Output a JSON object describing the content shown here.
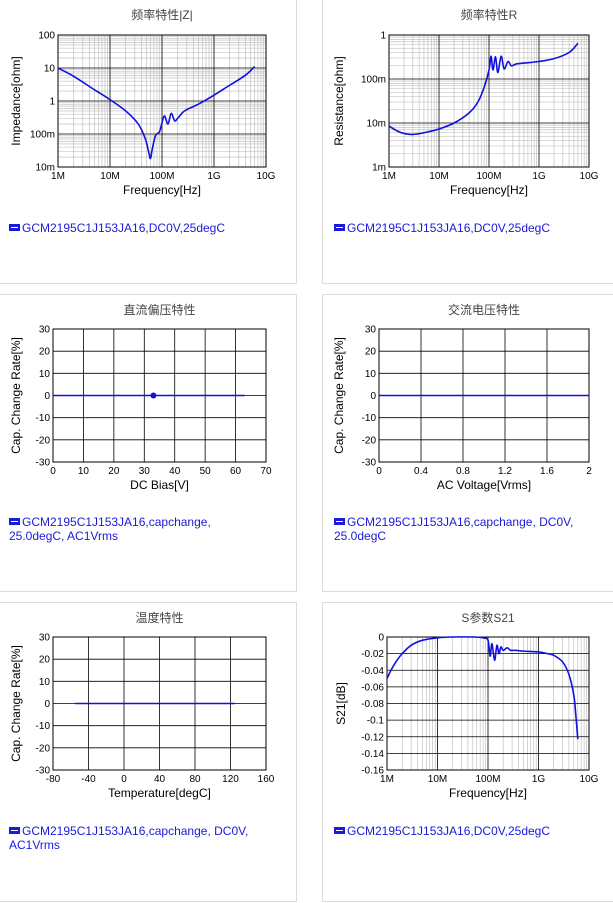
{
  "colors": {
    "curve": "#1010e0",
    "grid_major": "#000000",
    "grid_minor": "#b8b8b8",
    "legend": "#1a1adb"
  },
  "chart_data": [
    {
      "id": "c1",
      "type": "line",
      "title": "频率特性|Z|",
      "xlabel": "Frequency[Hz]",
      "ylabel": "Impedance[ohm]",
      "xscale": "log",
      "yscale": "log",
      "xlim": [
        1000000,
        10000000000
      ],
      "ylim": [
        0.01,
        100
      ],
      "xticks": [
        1000000,
        10000000,
        100000000,
        1000000000,
        10000000000
      ],
      "xtick_labels": [
        "1M",
        "10M",
        "100M",
        "1G",
        "10G"
      ],
      "yticks": [
        0.01,
        0.1,
        1,
        10,
        100
      ],
      "ytick_labels": [
        "10m",
        "100m",
        "1",
        "10",
        "100"
      ],
      "grid": true,
      "minor_grid": true,
      "series": [
        {
          "x": [
            1000000,
            2000000,
            5000000,
            10000000,
            20000000,
            35000000,
            48000000,
            55000000,
            60000000,
            65000000,
            75000000,
            90000000,
            110000000,
            130000000,
            150000000,
            175000000,
            200000000,
            250000000,
            300000000,
            500000000,
            1000000000,
            2000000000,
            4000000000,
            6000000000
          ],
          "y": [
            10,
            5.6,
            2.2,
            1.1,
            0.5,
            0.2,
            0.07,
            0.03,
            0.018,
            0.035,
            0.09,
            0.12,
            0.35,
            0.2,
            0.42,
            0.25,
            0.3,
            0.45,
            0.55,
            0.8,
            1.5,
            3,
            6,
            11
          ]
        }
      ],
      "legend": "GCM2195C1J153JA16,DC0V,25degC"
    },
    {
      "id": "c2",
      "type": "line",
      "title": "频率特性R",
      "xlabel": "Frequency[Hz]",
      "ylabel": "Resistance[ohm]",
      "xscale": "log",
      "yscale": "log",
      "xlim": [
        1000000,
        10000000000
      ],
      "ylim": [
        0.001,
        1
      ],
      "xticks": [
        1000000,
        10000000,
        100000000,
        1000000000,
        10000000000
      ],
      "xtick_labels": [
        "1M",
        "10M",
        "100M",
        "1G",
        "10G"
      ],
      "yticks": [
        0.001,
        0.01,
        0.1,
        1
      ],
      "ytick_labels": [
        "1m",
        "10m",
        "100m",
        "1"
      ],
      "grid": true,
      "minor_grid": true,
      "series": [
        {
          "x": [
            1000000,
            1500000,
            2000000,
            3000000,
            5000000,
            10000000,
            20000000,
            40000000,
            60000000,
            80000000,
            100000000,
            110000000,
            120000000,
            135000000,
            150000000,
            175000000,
            200000000,
            240000000,
            280000000,
            350000000,
            500000000,
            1000000000,
            2000000000,
            4000000000,
            6000000000
          ],
          "y": [
            0.0085,
            0.0065,
            0.0058,
            0.0055,
            0.006,
            0.0073,
            0.01,
            0.017,
            0.03,
            0.065,
            0.16,
            0.33,
            0.16,
            0.32,
            0.14,
            0.33,
            0.17,
            0.25,
            0.2,
            0.22,
            0.23,
            0.25,
            0.29,
            0.4,
            0.65
          ]
        }
      ],
      "legend": "GCM2195C1J153JA16,DC0V,25degC"
    },
    {
      "id": "c3",
      "type": "line",
      "title": "直流偏压特性",
      "xlabel": "DC Bias[V]",
      "ylabel": "Cap. Change Rate[%]",
      "xscale": "linear",
      "yscale": "linear",
      "xlim": [
        0,
        70
      ],
      "ylim": [
        -30,
        30
      ],
      "xticks": [
        0,
        10,
        20,
        30,
        40,
        50,
        60,
        70
      ],
      "xtick_labels": [
        "0",
        "10",
        "20",
        "30",
        "40",
        "50",
        "60",
        "70"
      ],
      "yticks": [
        -30,
        -20,
        -10,
        0,
        10,
        20,
        30
      ],
      "ytick_labels": [
        "-30",
        "-20",
        "-10",
        "0",
        "10",
        "20",
        "30"
      ],
      "grid": true,
      "minor_grid": false,
      "series": [
        {
          "x": [
            0,
            63
          ],
          "y": [
            0,
            0
          ]
        }
      ],
      "markers": [
        {
          "x": 33,
          "y": 0
        }
      ],
      "legend": "GCM2195C1J153JA16,capchange, 25.0degC, AC1Vrms"
    },
    {
      "id": "c4",
      "type": "line",
      "title": "交流电压特性",
      "xlabel": "AC Voltage[Vrms]",
      "ylabel": "Cap. Change Rate[%]",
      "xscale": "linear",
      "yscale": "linear",
      "xlim": [
        0,
        2
      ],
      "ylim": [
        -30,
        30
      ],
      "xticks": [
        0,
        0.4,
        0.8,
        1.2,
        1.6,
        2
      ],
      "xtick_labels": [
        "0",
        "0.4",
        "0.8",
        "1.2",
        "1.6",
        "2"
      ],
      "yticks": [
        -30,
        -20,
        -10,
        0,
        10,
        20,
        30
      ],
      "ytick_labels": [
        "-30",
        "-20",
        "-10",
        "0",
        "10",
        "20",
        "30"
      ],
      "grid": true,
      "minor_grid": false,
      "series": [
        {
          "x": [
            0,
            2
          ],
          "y": [
            0,
            0
          ]
        }
      ],
      "legend": "GCM2195C1J153JA16,capchange, DC0V, 25.0degC"
    },
    {
      "id": "c5",
      "type": "line",
      "title": "温度特性",
      "xlabel": "Temperature[degC]",
      "ylabel": "Cap. Change Rate[%]",
      "xscale": "linear",
      "yscale": "linear",
      "xlim": [
        -80,
        160
      ],
      "ylim": [
        -30,
        30
      ],
      "xticks": [
        -80,
        -40,
        0,
        40,
        80,
        120,
        160
      ],
      "xtick_labels": [
        "-80",
        "-40",
        "0",
        "40",
        "80",
        "120",
        "160"
      ],
      "yticks": [
        -30,
        -20,
        -10,
        0,
        10,
        20,
        30
      ],
      "ytick_labels": [
        "-30",
        "-20",
        "-10",
        "0",
        "10",
        "20",
        "30"
      ],
      "grid": true,
      "minor_grid": false,
      "series": [
        {
          "x": [
            -55,
            125
          ],
          "y": [
            0,
            0
          ]
        }
      ],
      "legend": "GCM2195C1J153JA16,capchange, DC0V, AC1Vrms"
    },
    {
      "id": "c6",
      "type": "line",
      "title": "S参数S21",
      "xlabel": "Frequency[Hz]",
      "ylabel": "S21[dB]",
      "xscale": "log",
      "yscale": "linear",
      "xlim": [
        1000000,
        10000000000
      ],
      "ylim": [
        -0.16,
        0
      ],
      "xticks": [
        1000000,
        10000000,
        100000000,
        1000000000,
        10000000000
      ],
      "xtick_labels": [
        "1M",
        "10M",
        "100M",
        "1G",
        "10G"
      ],
      "yticks": [
        -0.16,
        -0.14,
        -0.12,
        -0.1,
        -0.08,
        -0.06,
        -0.04,
        -0.02,
        0
      ],
      "ytick_labels": [
        "-0.16",
        "-0.14",
        "-0.12",
        "-0.1",
        "-0.08",
        "-0.06",
        "-0.04",
        "-0.02",
        "0"
      ],
      "grid": true,
      "minor_grid": true,
      "series": [
        {
          "x": [
            1000000,
            1200000,
            1500000,
            2000000,
            3000000,
            5000000,
            10000000,
            20000000,
            50000000,
            80000000,
            100000000,
            110000000,
            120000000,
            135000000,
            150000000,
            165000000,
            180000000,
            200000000,
            240000000,
            280000000,
            350000000,
            500000000,
            1000000000,
            1500000000,
            2000000000,
            3000000000,
            4000000000,
            5000000000,
            5500000000,
            6000000000
          ],
          "y": [
            -0.05,
            -0.04,
            -0.03,
            -0.02,
            -0.01,
            -0.004,
            -0.001,
            0,
            0,
            -0.001,
            -0.004,
            -0.023,
            -0.008,
            -0.028,
            -0.01,
            -0.02,
            -0.012,
            -0.016,
            -0.013,
            -0.016,
            -0.016,
            -0.017,
            -0.018,
            -0.02,
            -0.022,
            -0.03,
            -0.045,
            -0.07,
            -0.095,
            -0.123
          ]
        }
      ],
      "legend": "GCM2195C1J153JA16,DC0V,25degC"
    }
  ]
}
